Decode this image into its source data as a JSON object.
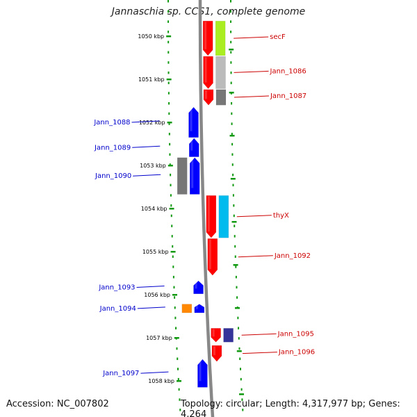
{
  "title": "Jannaschia sp. CCS1, complete genome",
  "footer": {
    "accession": "Accession: NC_007802",
    "topology": "Topology: circular; Length: 4,317,977 bp; Genes: 4,264"
  },
  "scale_unit": "kbp",
  "ticks": [
    {
      "kbp": 1050,
      "label": "1050 kbp"
    },
    {
      "kbp": 1051,
      "label": "1051 kbp"
    },
    {
      "kbp": 1052,
      "label": "1052 kbp"
    },
    {
      "kbp": 1053,
      "label": "1053 kbp"
    },
    {
      "kbp": 1054,
      "label": "1054 kbp"
    },
    {
      "kbp": 1055,
      "label": "1055 kbp"
    },
    {
      "kbp": 1056,
      "label": "1056 kbp"
    },
    {
      "kbp": 1057,
      "label": "1057 kbp"
    },
    {
      "kbp": 1058,
      "label": "1058 kbp"
    }
  ],
  "genes": [
    {
      "name": "secF",
      "strand": "+",
      "start_kbp": 1049.65,
      "end_kbp": 1050.45,
      "color": "#ff0000",
      "cog_color": "#aaee22",
      "label_color": "#cc0000"
    },
    {
      "name": "Jann_1086",
      "strand": "+",
      "start_kbp": 1050.47,
      "end_kbp": 1051.22,
      "color": "#ff0000",
      "cog_color": "#bbbbbb",
      "label_color": "#cc0000"
    },
    {
      "name": "Jann_1087",
      "strand": "+",
      "start_kbp": 1051.24,
      "end_kbp": 1051.6,
      "color": "#ff0000",
      "cog_color": "#777777",
      "label_color": "#cc0000"
    },
    {
      "name": "Jann_1088",
      "strand": "-",
      "start_kbp": 1051.65,
      "end_kbp": 1052.35,
      "color": "#0000ff",
      "cog_color": null,
      "label_color": "#0000cc"
    },
    {
      "name": "Jann_1089",
      "strand": "-",
      "start_kbp": 1052.37,
      "end_kbp": 1052.8,
      "color": "#0000ff",
      "cog_color": null,
      "label_color": "#0000cc"
    },
    {
      "name": "Jann_1090",
      "strand": "-",
      "start_kbp": 1052.82,
      "end_kbp": 1053.67,
      "color": "#0000ff",
      "cog_color": "#777777",
      "label_color": "#0000cc"
    },
    {
      "name": "thyX",
      "strand": "+",
      "start_kbp": 1053.7,
      "end_kbp": 1054.68,
      "color": "#ff0000",
      "cog_color": "#00bbee",
      "label_color": "#cc0000"
    },
    {
      "name": "Jann_1092",
      "strand": "+",
      "start_kbp": 1054.7,
      "end_kbp": 1055.55,
      "color": "#ff0000",
      "cog_color": null,
      "label_color": "#cc0000"
    },
    {
      "name": "Jann_1093",
      "strand": "-",
      "start_kbp": 1055.68,
      "end_kbp": 1055.98,
      "color": "#0000ff",
      "cog_color": null,
      "label_color": "#0000cc"
    },
    {
      "name": "Jann_1094",
      "strand": "-",
      "start_kbp": 1056.22,
      "end_kbp": 1056.42,
      "color": "#0000ff",
      "cog_color": "#ff8800",
      "label_color": "#0000cc"
    },
    {
      "name": "Jann_1095",
      "strand": "+",
      "start_kbp": 1056.78,
      "end_kbp": 1057.1,
      "color": "#ff0000",
      "cog_color": "#333399",
      "label_color": "#cc0000"
    },
    {
      "name": "Jann_1096",
      "strand": "+",
      "start_kbp": 1057.18,
      "end_kbp": 1057.55,
      "color": "#ff0000",
      "cog_color": null,
      "label_color": "#cc0000"
    },
    {
      "name": "Jann_1097",
      "strand": "-",
      "start_kbp": 1057.5,
      "end_kbp": 1058.15,
      "color": "#0000ff",
      "cog_color": null,
      "label_color": "#0000cc"
    }
  ],
  "colors": {
    "backbone": "#888888",
    "dotted_ring": "#119911",
    "forward_label_line": "#cc0000",
    "reverse_label_line": "#0000cc"
  }
}
